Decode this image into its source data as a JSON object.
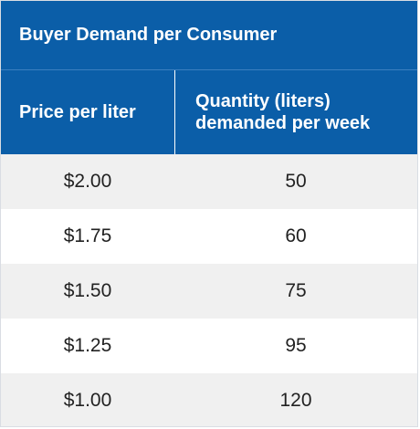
{
  "table": {
    "title": "Buyer Demand per Consumer",
    "headers": {
      "price": "Price per liter",
      "quantity_line1": "Quantity (liters)",
      "quantity_line2": "demanded per week"
    },
    "rows": [
      {
        "price": "$2.00",
        "quantity": "50"
      },
      {
        "price": "$1.75",
        "quantity": "60"
      },
      {
        "price": "$1.50",
        "quantity": "75"
      },
      {
        "price": "$1.25",
        "quantity": "95"
      },
      {
        "price": "$1.00",
        "quantity": "120"
      }
    ]
  },
  "colors": {
    "header_bg": "#0b5ea8",
    "stripe_bg": "#f0f0f0"
  }
}
